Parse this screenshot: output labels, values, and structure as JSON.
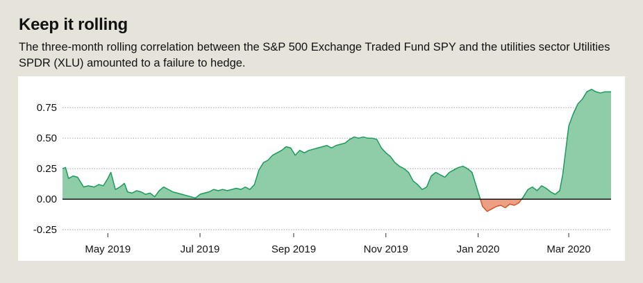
{
  "header": {
    "title": "Keep it rolling",
    "subtitle": "The three-month rolling correlation between the S&P 500 Exchange Traded Fund SPY and the utilities sector Utilities SPDR (XLU) amounted to a failure to hedge."
  },
  "colors": {
    "background": "#e6e4da",
    "plot_background": "#ffffff",
    "positive_fill": "#8fcda9",
    "positive_line": "#1a9a5a",
    "negative_fill": "#ec9f82",
    "negative_line": "#d0542e",
    "zero_line": "#000000",
    "grid": "#999999"
  },
  "chart_data": {
    "type": "area",
    "title": "Keep it rolling",
    "xlabel": "",
    "ylabel": "",
    "ylim": [
      -0.3,
      0.95
    ],
    "yticks": [
      -0.25,
      0.0,
      0.25,
      0.5,
      0.75
    ],
    "ytick_labels": [
      "-0.25",
      "0.00",
      "0.25",
      "0.50",
      "0.75"
    ],
    "xlim": [
      "2019-04-01",
      "2020-03-29"
    ],
    "xticks": [
      "2019-05-01",
      "2019-07-01",
      "2019-09-01",
      "2019-11-01",
      "2020-01-01",
      "2020-03-01"
    ],
    "xtick_labels": [
      "May 2019",
      "Jul 2019",
      "Sep 2019",
      "Nov 2019",
      "Jan 2020",
      "Mar 2020"
    ],
    "grid": "horizontal dotted",
    "series": [
      {
        "x": [
          "2019-04-01",
          "2019-04-03",
          "2019-04-05",
          "2019-04-08",
          "2019-04-11",
          "2019-04-15",
          "2019-04-18",
          "2019-04-22",
          "2019-04-25",
          "2019-04-28",
          "2019-05-01",
          "2019-05-03",
          "2019-05-06",
          "2019-05-09",
          "2019-05-12",
          "2019-05-14",
          "2019-05-17",
          "2019-05-20",
          "2019-05-23",
          "2019-05-26",
          "2019-05-29",
          "2019-06-01",
          "2019-06-04",
          "2019-06-07",
          "2019-06-10",
          "2019-06-13",
          "2019-06-16",
          "2019-06-19",
          "2019-06-22",
          "2019-06-25",
          "2019-06-28",
          "2019-07-01",
          "2019-07-04",
          "2019-07-07",
          "2019-07-10",
          "2019-07-13",
          "2019-07-16",
          "2019-07-19",
          "2019-07-22",
          "2019-07-25",
          "2019-07-28",
          "2019-07-31",
          "2019-08-03",
          "2019-08-06",
          "2019-08-09",
          "2019-08-12",
          "2019-08-15",
          "2019-08-18",
          "2019-08-21",
          "2019-08-24",
          "2019-08-27",
          "2019-08-30",
          "2019-09-02",
          "2019-09-05",
          "2019-09-08",
          "2019-09-11",
          "2019-09-14",
          "2019-09-17",
          "2019-09-20",
          "2019-09-23",
          "2019-09-26",
          "2019-09-29",
          "2019-10-02",
          "2019-10-05",
          "2019-10-08",
          "2019-10-11",
          "2019-10-14",
          "2019-10-17",
          "2019-10-20",
          "2019-10-23",
          "2019-10-26",
          "2019-10-29",
          "2019-11-01",
          "2019-11-04",
          "2019-11-07",
          "2019-11-10",
          "2019-11-13",
          "2019-11-16",
          "2019-11-19",
          "2019-11-22",
          "2019-11-25",
          "2019-11-28",
          "2019-12-01",
          "2019-12-04",
          "2019-12-07",
          "2019-12-10",
          "2019-12-13",
          "2019-12-16",
          "2019-12-19",
          "2019-12-22",
          "2019-12-25",
          "2019-12-28",
          "2019-12-31",
          "2020-01-02",
          "2020-01-04",
          "2020-01-07",
          "2020-01-10",
          "2020-01-13",
          "2020-01-16",
          "2020-01-19",
          "2020-01-22",
          "2020-01-25",
          "2020-01-28",
          "2020-01-31",
          "2020-02-03",
          "2020-02-06",
          "2020-02-09",
          "2020-02-12",
          "2020-02-15",
          "2020-02-18",
          "2020-02-21",
          "2020-02-24",
          "2020-02-26",
          "2020-02-28",
          "2020-03-01",
          "2020-03-04",
          "2020-03-07",
          "2020-03-10",
          "2020-03-13",
          "2020-03-16",
          "2020-03-19",
          "2020-03-22",
          "2020-03-25",
          "2020-03-29"
        ],
        "values": [
          0.25,
          0.26,
          0.17,
          0.19,
          0.18,
          0.1,
          0.11,
          0.1,
          0.12,
          0.11,
          0.17,
          0.22,
          0.08,
          0.1,
          0.13,
          0.06,
          0.05,
          0.07,
          0.06,
          0.04,
          0.05,
          0.02,
          0.07,
          0.1,
          0.08,
          0.06,
          0.05,
          0.04,
          0.03,
          0.02,
          0.01,
          0.04,
          0.05,
          0.06,
          0.08,
          0.07,
          0.08,
          0.07,
          0.08,
          0.09,
          0.08,
          0.1,
          0.08,
          0.12,
          0.24,
          0.3,
          0.32,
          0.36,
          0.38,
          0.4,
          0.43,
          0.42,
          0.36,
          0.4,
          0.38,
          0.4,
          0.41,
          0.42,
          0.43,
          0.44,
          0.42,
          0.44,
          0.45,
          0.46,
          0.49,
          0.51,
          0.5,
          0.51,
          0.5,
          0.5,
          0.49,
          0.42,
          0.38,
          0.35,
          0.3,
          0.27,
          0.25,
          0.22,
          0.15,
          0.12,
          0.08,
          0.1,
          0.19,
          0.22,
          0.2,
          0.18,
          0.22,
          0.24,
          0.26,
          0.27,
          0.25,
          0.22,
          0.1,
          0.02,
          -0.06,
          -0.1,
          -0.08,
          -0.06,
          -0.05,
          -0.07,
          -0.04,
          -0.05,
          -0.03,
          0.02,
          0.08,
          0.1,
          0.07,
          0.11,
          0.09,
          0.06,
          0.04,
          0.07,
          0.2,
          0.4,
          0.6,
          0.7,
          0.78,
          0.82,
          0.88,
          0.9,
          0.88,
          0.87,
          0.88,
          0.88
        ]
      }
    ]
  }
}
